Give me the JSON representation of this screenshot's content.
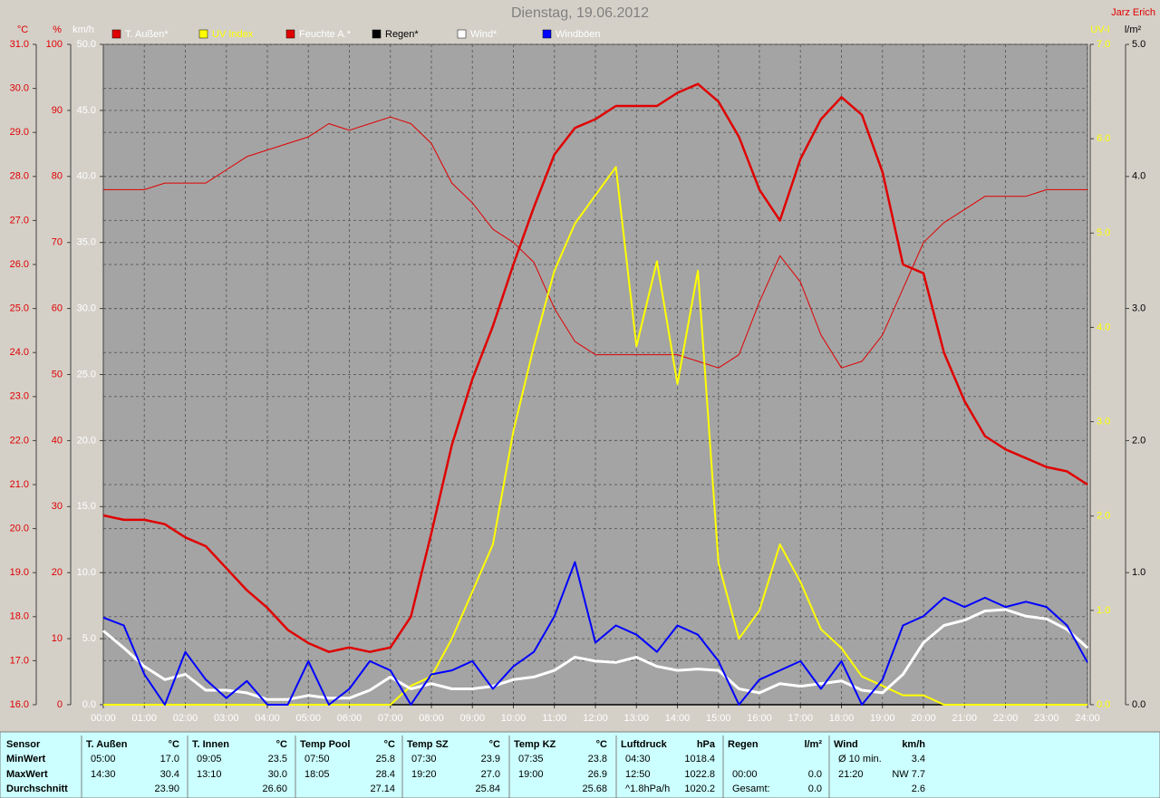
{
  "chart_data": {
    "type": "line",
    "title": "Dienstag, 19.06.2012",
    "author": "Jarz Erich",
    "grid": true,
    "x": [
      0,
      0.5,
      1,
      1.5,
      2,
      2.5,
      3,
      3.5,
      4,
      4.5,
      5,
      5.5,
      6,
      6.5,
      7,
      7.5,
      8,
      8.5,
      9,
      9.5,
      10,
      10.5,
      11,
      11.5,
      12,
      12.5,
      13,
      13.5,
      14,
      14.5,
      15,
      15.5,
      16,
      16.5,
      17,
      17.5,
      18,
      18.5,
      19,
      19.5,
      20,
      20.5,
      21,
      21.5,
      22,
      22.5,
      23,
      23.5,
      24
    ],
    "xlim": [
      0,
      24
    ],
    "xticks": [
      {
        "value": 0,
        "label": "00:00"
      },
      {
        "value": 1,
        "label": "01:00"
      },
      {
        "value": 2,
        "label": "02:00"
      },
      {
        "value": 3,
        "label": "03:00"
      },
      {
        "value": 4,
        "label": "04:00"
      },
      {
        "value": 5,
        "label": "05:00"
      },
      {
        "value": 6,
        "label": "06:00"
      },
      {
        "value": 7,
        "label": "07:00"
      },
      {
        "value": 8,
        "label": "08:00"
      },
      {
        "value": 9,
        "label": "09:00"
      },
      {
        "value": 10,
        "label": "10:00"
      },
      {
        "value": 11,
        "label": "11:00"
      },
      {
        "value": 12,
        "label": "12:00"
      },
      {
        "value": 13,
        "label": "13:00"
      },
      {
        "value": 14,
        "label": "14:00"
      },
      {
        "value": 15,
        "label": "15:00"
      },
      {
        "value": 16,
        "label": "16:00"
      },
      {
        "value": 17,
        "label": "17:00"
      },
      {
        "value": 18,
        "label": "18:00"
      },
      {
        "value": 19,
        "label": "19:00"
      },
      {
        "value": 20,
        "label": "20:00"
      },
      {
        "value": 21,
        "label": "21:00"
      },
      {
        "value": 22,
        "label": "22:00"
      },
      {
        "value": 23,
        "label": "23:00"
      },
      {
        "value": 24,
        "label": "24:00"
      }
    ],
    "ylabel": "°C",
    "ylim": [
      16,
      31
    ],
    "yticks": [
      {
        "value": 16,
        "label": "16.0"
      },
      {
        "value": 17,
        "label": "17.0"
      },
      {
        "value": 18,
        "label": "18.0"
      },
      {
        "value": 19,
        "label": "19.0"
      },
      {
        "value": 20,
        "label": "20.0"
      },
      {
        "value": 21,
        "label": "21.0"
      },
      {
        "value": 22,
        "label": "22.0"
      },
      {
        "value": 23,
        "label": "23.0"
      },
      {
        "value": 24,
        "label": "24.0"
      },
      {
        "value": 25,
        "label": "25.0"
      },
      {
        "value": 26,
        "label": "26.0"
      },
      {
        "value": 27,
        "label": "27.0"
      },
      {
        "value": 28,
        "label": "28.0"
      },
      {
        "value": 29,
        "label": "29.0"
      },
      {
        "value": 30,
        "label": "30.0"
      },
      {
        "value": 31,
        "label": "31.0"
      }
    ],
    "y2label": "%",
    "y2lim": [
      0,
      100
    ],
    "y2ticks": [
      0,
      10,
      20,
      30,
      40,
      50,
      60,
      70,
      80,
      90,
      100
    ],
    "y3label": "km/h",
    "y3lim": [
      0,
      50
    ],
    "y3ticks": [
      {
        "value": 0,
        "label": "0.0"
      },
      {
        "value": 5,
        "label": "5.0"
      },
      {
        "value": 10,
        "label": "10.0"
      },
      {
        "value": 15,
        "label": "15.0"
      },
      {
        "value": 20,
        "label": "20.0"
      },
      {
        "value": 25,
        "label": "25.0"
      },
      {
        "value": 30,
        "label": "30.0"
      },
      {
        "value": 35,
        "label": "35.0"
      },
      {
        "value": 40,
        "label": "40.0"
      },
      {
        "value": 45,
        "label": "45.0"
      },
      {
        "value": 50,
        "label": "50.0"
      }
    ],
    "y4label": "UV-I",
    "y4lim": [
      0,
      7
    ],
    "y4ticks": [
      {
        "value": 0,
        "label": "0.0"
      },
      {
        "value": 1,
        "label": "1.0"
      },
      {
        "value": 2,
        "label": "2.0"
      },
      {
        "value": 3,
        "label": "3.0"
      },
      {
        "value": 4,
        "label": "4.0"
      },
      {
        "value": 5,
        "label": "5.0"
      },
      {
        "value": 6,
        "label": "6.0"
      },
      {
        "value": 7,
        "label": "7.0"
      }
    ],
    "y5label": "l/m²",
    "y5lim": [
      0,
      5
    ],
    "y5ticks": [
      {
        "value": 0,
        "label": "0.0"
      },
      {
        "value": 1,
        "label": "1.0"
      },
      {
        "value": 2,
        "label": "2.0"
      },
      {
        "value": 3,
        "label": "3.0"
      },
      {
        "value": 4,
        "label": "4.0"
      },
      {
        "value": 5,
        "label": "5.0"
      }
    ],
    "series": [
      {
        "name": "T. Außen*",
        "color": "#e00000",
        "text_color": "#ffffff",
        "width": 2.5,
        "axis": "y",
        "values": [
          20.3,
          20.2,
          20.2,
          20.1,
          19.8,
          19.6,
          19.1,
          18.6,
          18.2,
          17.7,
          17.4,
          17.2,
          17.3,
          17.2,
          17.3,
          18.0,
          19.9,
          21.9,
          23.4,
          24.6,
          26.0,
          27.3,
          28.5,
          29.1,
          29.3,
          29.6,
          29.6,
          29.6,
          29.9,
          30.1,
          29.7,
          28.9,
          27.7,
          27.0,
          28.4,
          29.3,
          29.8,
          29.4,
          28.1,
          26.0,
          25.8,
          24.0,
          22.9,
          22.1,
          21.8,
          21.6,
          21.4,
          21.3,
          21.0
        ]
      },
      {
        "name": "UV Index",
        "color": "#ffff00",
        "text_color": "#ffff00",
        "width": 2,
        "axis": "y4",
        "values": [
          0,
          0,
          0,
          0,
          0,
          0,
          0,
          0,
          0,
          0,
          0,
          0,
          0,
          0,
          0,
          0.2,
          0.3,
          0.7,
          1.2,
          1.7,
          2.9,
          3.8,
          4.6,
          5.1,
          5.4,
          5.7,
          3.8,
          4.7,
          3.4,
          4.6,
          1.5,
          0.7,
          1.0,
          1.7,
          1.3,
          0.8,
          0.6,
          0.3,
          0.2,
          0.1,
          0.1,
          0,
          0,
          0,
          0,
          0,
          0,
          0,
          0
        ]
      },
      {
        "name": "Feuchte A.*",
        "color": "#e00000",
        "text_color": "#ffffff",
        "width": 1,
        "axis": "y2",
        "values": [
          78,
          78,
          78,
          79,
          79,
          79,
          81,
          83,
          84,
          85,
          86,
          88,
          87,
          88,
          89,
          88,
          85,
          79,
          76,
          72,
          70,
          67,
          60,
          55,
          53,
          53,
          53,
          53,
          53,
          52,
          51,
          53,
          61,
          68,
          64,
          56,
          51,
          52,
          56,
          63,
          70,
          73,
          75,
          77,
          77,
          77,
          78,
          78,
          78
        ]
      },
      {
        "name": "Regen*",
        "color": "#000000",
        "text_color": "#000000",
        "width": 1.5,
        "axis": "y5",
        "values": [
          0,
          0,
          0,
          0,
          0,
          0,
          0,
          0,
          0,
          0,
          0,
          0,
          0,
          0,
          0,
          0,
          0,
          0,
          0,
          0,
          0,
          0,
          0,
          0,
          0,
          0,
          0,
          0,
          0,
          0,
          0,
          0,
          0,
          0,
          0,
          0,
          0,
          0,
          0,
          0,
          0,
          0,
          0,
          0,
          0,
          0,
          0,
          0,
          0
        ]
      },
      {
        "name": "Wind*",
        "color": "#ffffff",
        "text_color": "#ffffff",
        "width": 3,
        "axis": "y3",
        "values": [
          5.6,
          4.3,
          2.9,
          1.9,
          2.3,
          1.1,
          1.1,
          0.9,
          0.4,
          0.4,
          0.7,
          0.5,
          0.5,
          1.1,
          2.1,
          1.2,
          1.6,
          1.2,
          1.2,
          1.4,
          1.9,
          2.1,
          2.6,
          3.6,
          3.3,
          3.2,
          3.6,
          2.9,
          2.6,
          2.7,
          2.6,
          1.2,
          0.9,
          1.6,
          1.4,
          1.6,
          1.8,
          1.1,
          0.9,
          2.3,
          4.7,
          6.0,
          6.4,
          7.1,
          7.2,
          6.7,
          6.5,
          5.7,
          4.3
        ]
      },
      {
        "name": "Windböen",
        "color": "#0000ff",
        "text_color": "#ffffff",
        "width": 2,
        "axis": "y3",
        "values": [
          6.6,
          6.0,
          2.3,
          0,
          4.0,
          1.9,
          0.5,
          1.8,
          0,
          0,
          3.3,
          0,
          1.2,
          3.3,
          2.6,
          0,
          2.3,
          2.6,
          3.3,
          1.2,
          2.9,
          4.0,
          6.7,
          10.8,
          4.7,
          6.0,
          5.3,
          4.0,
          6.0,
          5.3,
          3.3,
          0,
          1.9,
          2.6,
          3.3,
          1.2,
          3.3,
          0,
          1.9,
          6.0,
          6.7,
          8.1,
          7.4,
          8.1,
          7.4,
          7.8,
          7.4,
          6.0,
          3.2
        ]
      }
    ]
  },
  "stats": {
    "header": "Sensor",
    "rows": [
      "MinWert",
      "MaxWert",
      "Durchschnitt"
    ],
    "columns": [
      {
        "name": "T. Außen",
        "unit": "°C",
        "min": {
          "label": "05:00",
          "value": "17.0"
        },
        "max": {
          "label": "14:30",
          "value": "30.4"
        },
        "avg": {
          "value": "23.90"
        }
      },
      {
        "name": "T. Innen",
        "unit": "°C",
        "min": {
          "label": "09:05",
          "value": "23.5"
        },
        "max": {
          "label": "13:10",
          "value": "30.0"
        },
        "avg": {
          "value": "26.60"
        }
      },
      {
        "name": "Temp Pool",
        "unit": "°C",
        "min": {
          "label": "07:50",
          "value": "25.8"
        },
        "max": {
          "label": "18:05",
          "value": "28.4"
        },
        "avg": {
          "value": "27.14"
        }
      },
      {
        "name": "Temp SZ",
        "unit": "°C",
        "min": {
          "label": "07:30",
          "value": "23.9"
        },
        "max": {
          "label": "19:20",
          "value": "27.0"
        },
        "avg": {
          "value": "25.84"
        }
      },
      {
        "name": "Temp KZ",
        "unit": "°C",
        "min": {
          "label": "07:35",
          "value": "23.8"
        },
        "max": {
          "label": "19:00",
          "value": "26.9"
        },
        "avg": {
          "value": "25.68"
        }
      },
      {
        "name": "Luftdruck",
        "unit": "hPa",
        "min": {
          "label": "04:30",
          "value": "1018.4"
        },
        "max": {
          "label": "12:50",
          "value": "1022.8"
        },
        "avg": {
          "label": "^1.8hPa/h",
          "value": "1020.2"
        }
      },
      {
        "name": "Regen",
        "unit": "l/m²",
        "max": {
          "label": "00:00",
          "value": "0.0"
        },
        "avg": {
          "label": "Gesamt:",
          "value": "0.0"
        }
      },
      {
        "name": "Wind",
        "unit": "km/h",
        "min": {
          "label": "Ø 10 min.",
          "value": "3.4"
        },
        "max": {
          "label": "21:20",
          "value": "NW 7.7"
        },
        "avg": {
          "value": "2.6"
        }
      }
    ]
  }
}
